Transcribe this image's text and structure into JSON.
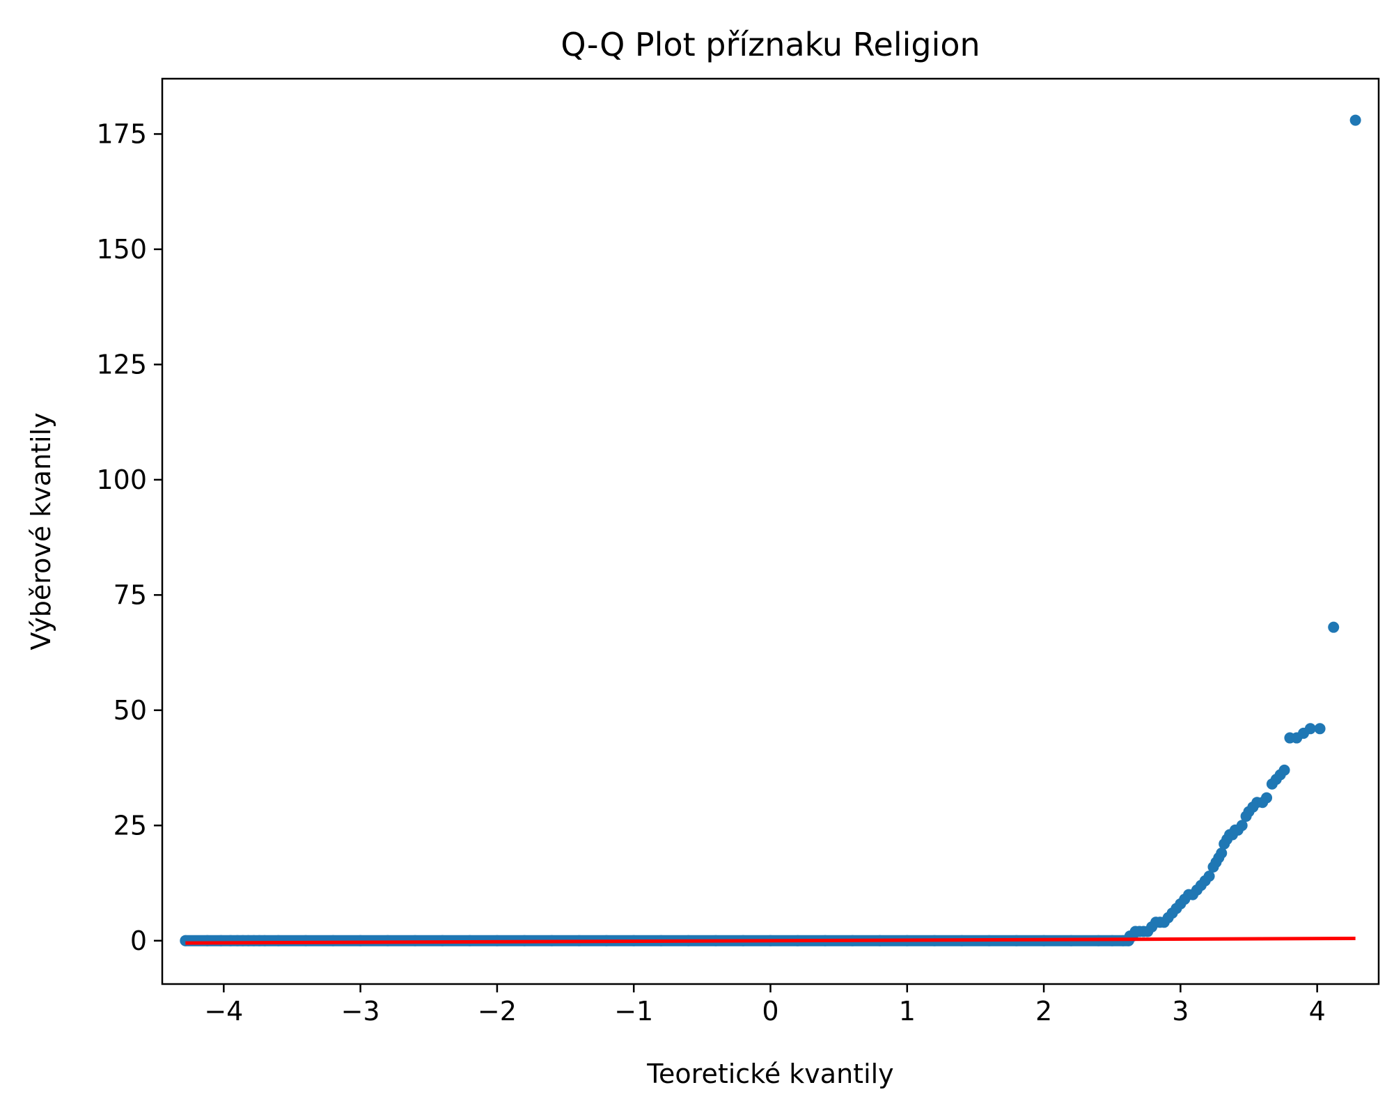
{
  "chart_data": {
    "type": "scatter",
    "title": "Q-Q Plot příznaku Religion",
    "xlabel": "Teoretické kvantily",
    "ylabel": "Výběrové kvantily",
    "xlim": [
      -4.45,
      4.45
    ],
    "ylim": [
      -9.4,
      187
    ],
    "x_ticks": [
      -4,
      -3,
      -2,
      -1,
      0,
      1,
      2,
      3,
      4
    ],
    "x_tick_labels": [
      "−4",
      "−3",
      "−2",
      "−1",
      "0",
      "1",
      "2",
      "3",
      "4"
    ],
    "y_ticks": [
      0,
      25,
      50,
      75,
      100,
      125,
      150,
      175
    ],
    "y_tick_labels": [
      "0",
      "25",
      "50",
      "75",
      "100",
      "125",
      "150",
      "175"
    ],
    "grid": false,
    "series": [
      {
        "kind": "scatter",
        "color": "#1f77b4",
        "points": [
          [
            -4.28,
            0
          ],
          [
            -4.12,
            0
          ],
          [
            -4.02,
            0
          ],
          [
            -3.95,
            0
          ],
          [
            -3.9,
            0
          ],
          [
            -3.86,
            0
          ],
          [
            -3.82,
            0
          ],
          [
            -3.78,
            0
          ],
          [
            -3.74,
            0
          ],
          [
            -3.7,
            0
          ],
          [
            -3.6,
            0
          ],
          [
            -3.4,
            0
          ],
          [
            -3.2,
            0
          ],
          [
            -3.0,
            0
          ],
          [
            -2.8,
            0
          ],
          [
            -2.6,
            0
          ],
          [
            -2.4,
            0
          ],
          [
            -2.2,
            0
          ],
          [
            -2.0,
            0
          ],
          [
            -1.8,
            0
          ],
          [
            -1.6,
            0
          ],
          [
            -1.4,
            0
          ],
          [
            -1.2,
            0
          ],
          [
            -1.0,
            0
          ],
          [
            -0.8,
            0
          ],
          [
            -0.6,
            0
          ],
          [
            -0.4,
            0
          ],
          [
            -0.2,
            0
          ],
          [
            0.0,
            0
          ],
          [
            0.2,
            0
          ],
          [
            0.4,
            0
          ],
          [
            0.6,
            0
          ],
          [
            0.8,
            0
          ],
          [
            1.0,
            0
          ],
          [
            1.2,
            0
          ],
          [
            1.4,
            0
          ],
          [
            1.6,
            0
          ],
          [
            1.8,
            0
          ],
          [
            2.0,
            0
          ],
          [
            2.2,
            0
          ],
          [
            2.4,
            0
          ],
          [
            2.5,
            0
          ],
          [
            2.58,
            0
          ],
          [
            2.62,
            0
          ],
          [
            2.63,
            1
          ],
          [
            2.65,
            1
          ],
          [
            2.67,
            2
          ],
          [
            2.7,
            2
          ],
          [
            2.73,
            2
          ],
          [
            2.76,
            2
          ],
          [
            2.79,
            3
          ],
          [
            2.82,
            4
          ],
          [
            2.85,
            4
          ],
          [
            2.88,
            4
          ],
          [
            2.91,
            5
          ],
          [
            2.94,
            6
          ],
          [
            2.97,
            7
          ],
          [
            3.0,
            8
          ],
          [
            3.03,
            9
          ],
          [
            3.06,
            10
          ],
          [
            3.09,
            10
          ],
          [
            3.12,
            11
          ],
          [
            3.15,
            12
          ],
          [
            3.18,
            13
          ],
          [
            3.21,
            14
          ],
          [
            3.24,
            16
          ],
          [
            3.26,
            17
          ],
          [
            3.28,
            18
          ],
          [
            3.3,
            19
          ],
          [
            3.32,
            21
          ],
          [
            3.34,
            22
          ],
          [
            3.36,
            23
          ],
          [
            3.38,
            23
          ],
          [
            3.4,
            24
          ],
          [
            3.42,
            24
          ],
          [
            3.45,
            25
          ],
          [
            3.48,
            27
          ],
          [
            3.5,
            28
          ],
          [
            3.53,
            29
          ],
          [
            3.56,
            30
          ],
          [
            3.6,
            30
          ],
          [
            3.63,
            31
          ],
          [
            3.67,
            34
          ],
          [
            3.7,
            35
          ],
          [
            3.73,
            36
          ],
          [
            3.76,
            37
          ],
          [
            3.8,
            44
          ],
          [
            3.85,
            44
          ],
          [
            3.9,
            45
          ],
          [
            3.95,
            46
          ],
          [
            4.02,
            46
          ],
          [
            4.12,
            68
          ],
          [
            4.28,
            178
          ]
        ]
      },
      {
        "kind": "line",
        "color": "#ff0000",
        "points": [
          [
            -4.28,
            -0.5
          ],
          [
            4.28,
            0.5
          ]
        ]
      }
    ]
  }
}
